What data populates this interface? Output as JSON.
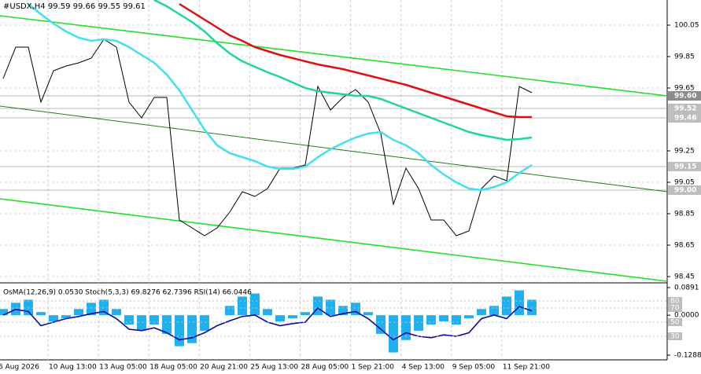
{
  "chart_data": {
    "type": "line",
    "title": "#USDX,H4  99.59 99.66 99.55 99.61",
    "indicator_title": "OsMA(12,26,9) 0.0530 Stoch(5,3,3) 69.8276 62.7396 RSI(14) 66.0446",
    "time_labels": [
      "6 Aug 2026",
      "10 Aug 13:00",
      "13 Aug 05:00",
      "18 Aug 05:00",
      "20 Aug 21:00",
      "25 Aug 13:00",
      "28 Aug 05:00",
      "1 Sep 21:00",
      "4 Sep 13:00",
      "9 Sep 05:00",
      "11 Sep 21:00"
    ],
    "ylim": [
      98.42,
      100.21
    ],
    "yticks": [
      100.05,
      99.85,
      99.65,
      99.25,
      99.05,
      98.85,
      98.65,
      98.45
    ],
    "levels": [
      {
        "value": 99.6,
        "label": "99.60"
      },
      99.52,
      99.46,
      99.15,
      {
        "value": 99.0,
        "label": "99.00"
      }
    ],
    "series": [
      {
        "name": "Close",
        "color": "#000000",
        "values": [
          99.71,
          99.91,
          99.91,
          99.56,
          99.76,
          99.79,
          99.81,
          99.84,
          99.96,
          99.91,
          99.56,
          99.46,
          99.59,
          99.59,
          98.81,
          98.76,
          98.71,
          98.76,
          98.86,
          98.99,
          98.96,
          99.01,
          99.14,
          99.14,
          99.16,
          99.66,
          99.51,
          99.59,
          99.64,
          99.56,
          99.36,
          98.91,
          99.14,
          99.01,
          98.81,
          98.81,
          98.71,
          98.74,
          99.01,
          99.09,
          99.06,
          99.66,
          99.62
        ]
      },
      {
        "name": "MA slow",
        "color": "#e01010",
        "values": [
          null,
          null,
          null,
          null,
          null,
          null,
          null,
          null,
          null,
          null,
          null,
          null,
          null,
          null,
          100.185,
          100.135,
          100.085,
          100.035,
          99.985,
          99.95,
          99.91,
          99.885,
          99.86,
          99.84,
          99.82,
          99.8,
          99.785,
          99.77,
          99.75,
          99.73,
          99.71,
          99.69,
          99.67,
          99.645,
          99.62,
          99.595,
          99.57,
          99.545,
          99.52,
          99.495,
          99.47,
          99.465,
          99.465
        ]
      },
      {
        "name": "MA medium",
        "color": "#1ed69a",
        "values": [
          null,
          null,
          null,
          null,
          null,
          null,
          null,
          null,
          null,
          null,
          null,
          null,
          100.21,
          100.17,
          100.12,
          100.07,
          100.01,
          99.935,
          99.87,
          99.82,
          99.785,
          99.75,
          99.72,
          99.685,
          99.65,
          99.63,
          99.62,
          99.61,
          99.6,
          99.6,
          99.58,
          99.55,
          99.52,
          99.49,
          99.46,
          99.43,
          99.4,
          99.37,
          99.35,
          99.335,
          99.32,
          99.325,
          99.335
        ]
      },
      {
        "name": "MA fast",
        "color": "#40e0f0",
        "values": [
          null,
          null,
          100.185,
          100.12,
          100.06,
          100.01,
          99.97,
          99.95,
          99.96,
          99.95,
          99.91,
          99.86,
          99.81,
          99.735,
          99.635,
          99.51,
          99.385,
          99.285,
          99.235,
          99.21,
          99.185,
          99.15,
          99.135,
          99.135,
          99.15,
          99.21,
          99.26,
          99.3,
          99.335,
          99.36,
          99.37,
          99.32,
          99.285,
          99.235,
          99.16,
          99.1,
          99.05,
          99.01,
          99.0,
          99.02,
          99.05,
          99.11,
          99.16
        ]
      }
    ],
    "trend_lines": [
      {
        "color": "#22e022",
        "values": [
          100.11,
          99.6
        ]
      },
      {
        "color": "#1f7a1f",
        "values": [
          99.535,
          98.99
        ]
      },
      {
        "color": "#22e022",
        "values": [
          98.945,
          98.42
        ]
      }
    ],
    "osma": {
      "color": "#1fb0f0",
      "ylim": [
        -0.1288,
        0.0891
      ],
      "yticks": [
        {
          "value": 0.0891,
          "label": "0.0891"
        },
        {
          "value": 0,
          "label": "0.0000"
        },
        -0.1288
      ],
      "values": [
        0.02,
        0.04,
        0.05,
        0.01,
        -0.02,
        -0.01,
        0.02,
        0.04,
        0.05,
        0.02,
        -0.03,
        -0.05,
        -0.03,
        -0.06,
        -0.1,
        -0.09,
        -0.05,
        0.0,
        0.03,
        0.06,
        0.07,
        0.02,
        -0.02,
        -0.01,
        0.01,
        0.06,
        0.05,
        0.03,
        0.04,
        0.01,
        -0.06,
        -0.12,
        -0.08,
        -0.05,
        -0.03,
        -0.02,
        -0.03,
        -0.01,
        0.02,
        0.03,
        0.06,
        0.08,
        0.05
      ]
    },
    "rsi": {
      "color": "#0a0aa0",
      "ylim": [
        0,
        100
      ],
      "yticks": [
        80,
        70,
        50,
        30
      ],
      "values": [
        60,
        68,
        65,
        45,
        50,
        55,
        58,
        62,
        65,
        55,
        40,
        38,
        42,
        35,
        25,
        28,
        35,
        45,
        52,
        58,
        60,
        50,
        45,
        48,
        50,
        70,
        58,
        62,
        65,
        55,
        40,
        25,
        35,
        30,
        28,
        32,
        30,
        35,
        55,
        60,
        55,
        72,
        66
      ]
    }
  }
}
